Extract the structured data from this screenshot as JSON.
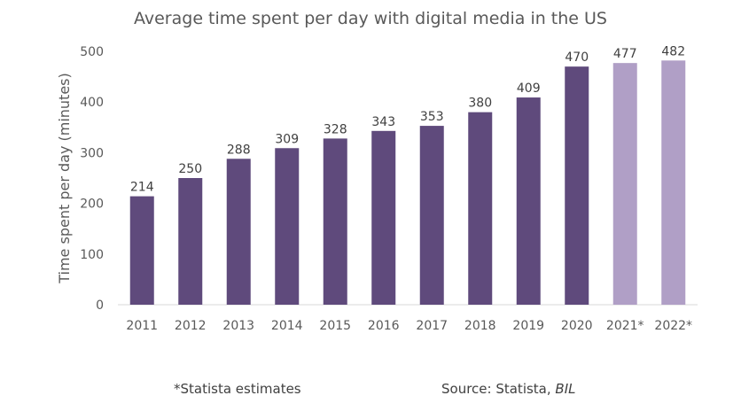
{
  "chart_data": {
    "type": "bar",
    "title": "Average time spent per day with digital media in the US",
    "xlabel": "",
    "ylabel": "Time spent per day (minutes)",
    "ylim": [
      0,
      500
    ],
    "yticks": [
      0,
      100,
      200,
      300,
      400,
      500
    ],
    "categories": [
      "2011",
      "2012",
      "2013",
      "2014",
      "2015",
      "2016",
      "2017",
      "2018",
      "2019",
      "2020",
      "2021*",
      "2022*"
    ],
    "values": [
      214,
      250,
      288,
      309,
      328,
      343,
      353,
      380,
      409,
      470,
      477,
      482
    ],
    "estimated": [
      false,
      false,
      false,
      false,
      false,
      false,
      false,
      false,
      false,
      false,
      true,
      true
    ],
    "data_labels": true,
    "grid": false,
    "legend": "none",
    "colors": {
      "actual": "#5f4a7c",
      "estimate": "#b09fc6",
      "axis": "#d9d9d9",
      "text": "#595959"
    }
  },
  "footnotes": {
    "estimates": "*Statista estimates",
    "source_prefix": "Source: Statista, ",
    "source_italic": "BIL"
  }
}
